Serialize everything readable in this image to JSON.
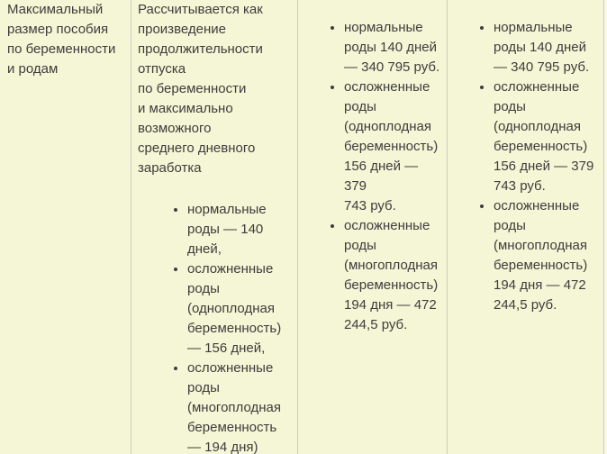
{
  "theme": {
    "background": "#f5f6d5",
    "border": "#cbcbc3",
    "text": "#3d3d3d",
    "filler_strip": "#f9f9e6"
  },
  "table": {
    "row": {
      "term": {
        "paragraph": "Максимальный\nразмер пособия\nпо беременности\nи родам"
      },
      "calculation": {
        "paragraph": "Рассчитывается как\nпроизведение\nпродолжительности\nотпуска\nпо беременности\nи максимально\nвозможного\nсреднего дневного\nзаработка",
        "list": [
          "нормальные\nроды — 140\nдней,",
          "осложненные\nроды\n(одноплодная\nбеременность)\n— 156 дней,",
          "осложненные\nроды\n(многоплодная\nбеременность\n— 194 дня)"
        ]
      },
      "amounts_a": {
        "list": [
          "нормальные\nроды 140 дней\n— 340 795 руб.",
          "осложненные\nроды\n(одноплодная\nбеременность)\n156 дней — 379\n743 руб.",
          "осложненные\nроды\n(многоплодная\nбеременность)\n194 дня — 472\n244,5 руб."
        ]
      },
      "amounts_b": {
        "list": [
          "нормальные\nроды 140 дней\n— 340 795 руб.",
          "осложненные\nроды\n(одноплодная\nбеременность)\n156 дней — 379\n743 руб.",
          "осложненные\nроды\n(многоплодная\nбеременность)\n194 дня — 472\n244,5 руб."
        ]
      }
    }
  }
}
